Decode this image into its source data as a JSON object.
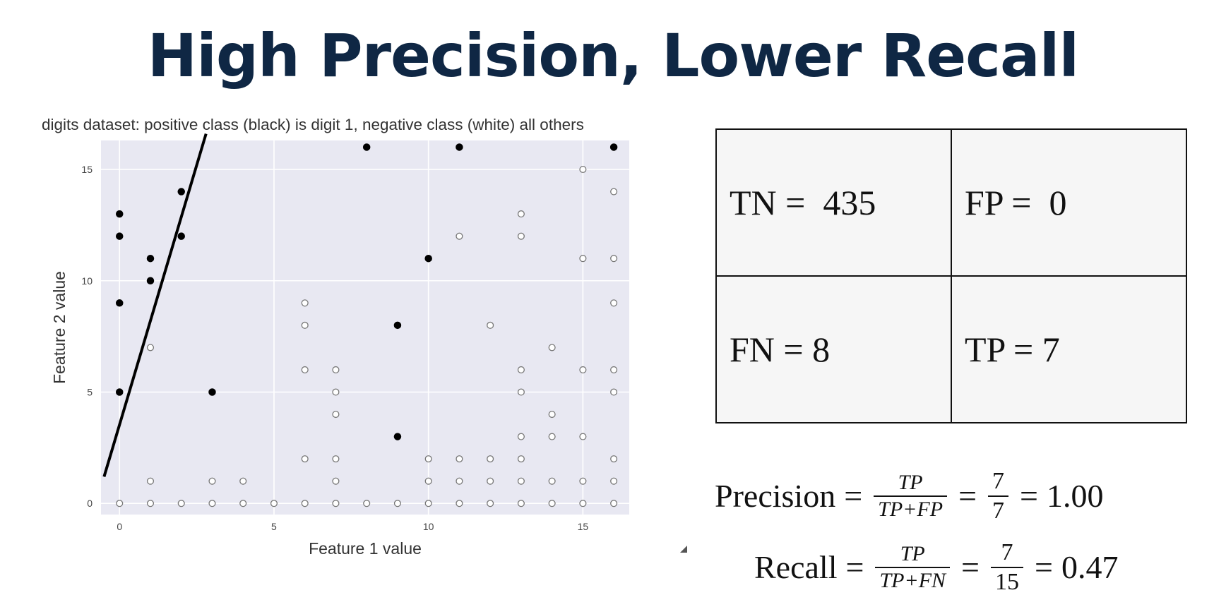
{
  "slide": {
    "title": "High Precision, Lower Recall"
  },
  "chart_data": {
    "type": "scatter",
    "title": "digits dataset: positive class (black) is digit 1, negative class (white) all others",
    "xlabel": "Feature 1 value",
    "ylabel": "Feature 2 value",
    "xlim": [
      -0.6,
      16.5
    ],
    "ylim": [
      -0.5,
      16.3
    ],
    "xticks": [
      0,
      5,
      10,
      15
    ],
    "yticks": [
      0,
      5,
      10,
      15
    ],
    "grid": true,
    "background": "#e8e8f2",
    "decision_boundary": {
      "x": [
        -0.5,
        2.8
      ],
      "y": [
        1.2,
        16.6
      ],
      "color": "#000000"
    },
    "series": [
      {
        "color": "#000000",
        "points": [
          [
            0,
            13
          ],
          [
            0,
            12
          ],
          [
            0,
            9
          ],
          [
            0,
            5
          ],
          [
            1,
            11
          ],
          [
            1,
            10
          ],
          [
            2,
            14
          ],
          [
            2,
            12
          ],
          [
            3,
            5
          ],
          [
            8,
            16
          ],
          [
            9,
            8
          ],
          [
            9,
            3
          ],
          [
            10,
            11
          ],
          [
            11,
            16
          ],
          [
            16,
            16
          ]
        ]
      },
      {
        "color": "#ffffff",
        "points": [
          [
            0,
            0
          ],
          [
            1,
            0
          ],
          [
            2,
            0
          ],
          [
            3,
            0
          ],
          [
            4,
            0
          ],
          [
            5,
            0
          ],
          [
            6,
            0
          ],
          [
            7,
            0
          ],
          [
            8,
            0
          ],
          [
            9,
            0
          ],
          [
            10,
            0
          ],
          [
            11,
            0
          ],
          [
            12,
            0
          ],
          [
            13,
            0
          ],
          [
            14,
            0
          ],
          [
            15,
            0
          ],
          [
            16,
            0
          ],
          [
            1,
            1
          ],
          [
            1,
            7
          ],
          [
            3,
            1
          ],
          [
            4,
            1
          ],
          [
            6,
            9
          ],
          [
            6,
            8
          ],
          [
            6,
            6
          ],
          [
            6,
            2
          ],
          [
            7,
            6
          ],
          [
            7,
            5
          ],
          [
            7,
            4
          ],
          [
            7,
            2
          ],
          [
            7,
            1
          ],
          [
            10,
            2
          ],
          [
            10,
            1
          ],
          [
            11,
            12
          ],
          [
            11,
            2
          ],
          [
            11,
            1
          ],
          [
            12,
            8
          ],
          [
            12,
            2
          ],
          [
            12,
            1
          ],
          [
            13,
            13
          ],
          [
            13,
            12
          ],
          [
            13,
            6
          ],
          [
            13,
            5
          ],
          [
            13,
            3
          ],
          [
            13,
            2
          ],
          [
            13,
            1
          ],
          [
            14,
            7
          ],
          [
            14,
            4
          ],
          [
            14,
            3
          ],
          [
            14,
            1
          ],
          [
            15,
            15
          ],
          [
            15,
            11
          ],
          [
            15,
            6
          ],
          [
            15,
            3
          ],
          [
            15,
            1
          ],
          [
            16,
            14
          ],
          [
            16,
            11
          ],
          [
            16,
            9
          ],
          [
            16,
            6
          ],
          [
            16,
            5
          ],
          [
            16,
            2
          ],
          [
            16,
            1
          ]
        ]
      }
    ]
  },
  "confusion_matrix": {
    "tn": "TN =  435",
    "fp": "FP =  0",
    "fn": "FN = 8",
    "tp": "TP = 7"
  },
  "precision": {
    "label": "Precision",
    "eq": "=",
    "num": "TP",
    "den": "TP+FP",
    "val_num": "7",
    "val_den": "7",
    "result": "1.00"
  },
  "recall": {
    "label": "Recall",
    "eq": "=",
    "num": "TP",
    "den": "TP+FN",
    "val_num": "7",
    "val_den": "15",
    "result": "0.47"
  }
}
